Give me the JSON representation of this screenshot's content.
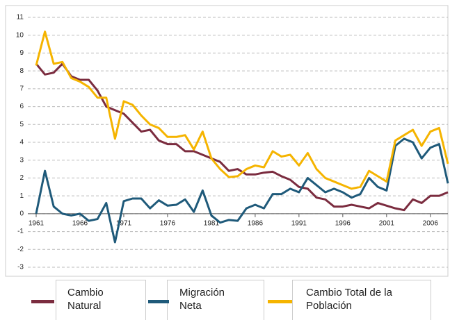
{
  "chart_data": {
    "type": "line",
    "x": [
      1961,
      1962,
      1963,
      1964,
      1965,
      1966,
      1967,
      1968,
      1969,
      1970,
      1971,
      1972,
      1973,
      1974,
      1975,
      1976,
      1977,
      1978,
      1979,
      1980,
      1981,
      1982,
      1983,
      1984,
      1985,
      1986,
      1987,
      1988,
      1989,
      1990,
      1991,
      1992,
      1993,
      1994,
      1995,
      1996,
      1997,
      1998,
      1999,
      2000,
      2001,
      2002,
      2003,
      2004,
      2005,
      2006,
      2007,
      2008
    ],
    "xlim": [
      1961,
      2008
    ],
    "xticks": [
      1961,
      1966,
      1971,
      1976,
      1981,
      1986,
      1991,
      1996,
      2001,
      2006
    ],
    "ylim": [
      -3,
      11
    ],
    "yticks": [
      -3,
      -2,
      -1,
      0,
      1,
      2,
      3,
      4,
      5,
      6,
      7,
      8,
      9,
      10,
      11
    ],
    "grid": true,
    "series": [
      {
        "name": "Cambio Natural",
        "color": "#7b2c3f",
        "values": [
          8.4,
          7.8,
          7.9,
          8.4,
          7.7,
          7.5,
          7.5,
          6.9,
          6.0,
          5.8,
          5.6,
          5.1,
          4.6,
          4.7,
          4.1,
          3.9,
          3.9,
          3.5,
          3.5,
          3.3,
          3.1,
          2.9,
          2.4,
          2.5,
          2.2,
          2.2,
          2.3,
          2.35,
          2.1,
          1.9,
          1.5,
          1.4,
          0.9,
          0.8,
          0.4,
          0.4,
          0.5,
          0.4,
          0.3,
          0.6,
          0.45,
          0.3,
          0.2,
          0.8,
          0.6,
          1.0,
          1.0,
          1.2
        ]
      },
      {
        "name": "Migración Neta",
        "color": "#1f5a7a",
        "values": [
          0,
          2.4,
          0.4,
          0,
          -0.1,
          0,
          -0.4,
          -0.3,
          0.6,
          -1.6,
          0.7,
          0.85,
          0.85,
          0.3,
          0.75,
          0.45,
          0.5,
          0.8,
          0.1,
          1.3,
          -0.1,
          -0.5,
          -0.35,
          -0.4,
          0.3,
          0.5,
          0.3,
          1.1,
          1.1,
          1.4,
          1.2,
          2.0,
          1.6,
          1.2,
          1.4,
          1.2,
          0.9,
          1.1,
          2.0,
          1.5,
          1.3,
          3.8,
          4.2,
          4.0,
          3.1,
          3.7,
          3.9,
          1.7
        ]
      },
      {
        "name": "Cambio Total  de la Población",
        "color": "#f5b400",
        "values": [
          8.3,
          10.2,
          8.4,
          8.5,
          7.6,
          7.4,
          7.1,
          6.5,
          6.5,
          4.2,
          6.3,
          6.1,
          5.5,
          5.0,
          4.8,
          4.3,
          4.3,
          4.4,
          3.6,
          4.6,
          3.1,
          2.5,
          2.05,
          2.1,
          2.5,
          2.7,
          2.6,
          3.5,
          3.2,
          3.3,
          2.7,
          3.4,
          2.5,
          2.0,
          1.8,
          1.6,
          1.4,
          1.5,
          2.4,
          2.1,
          1.8,
          4.1,
          4.4,
          4.7,
          3.8,
          4.6,
          4.8,
          2.8
        ]
      }
    ]
  }
}
